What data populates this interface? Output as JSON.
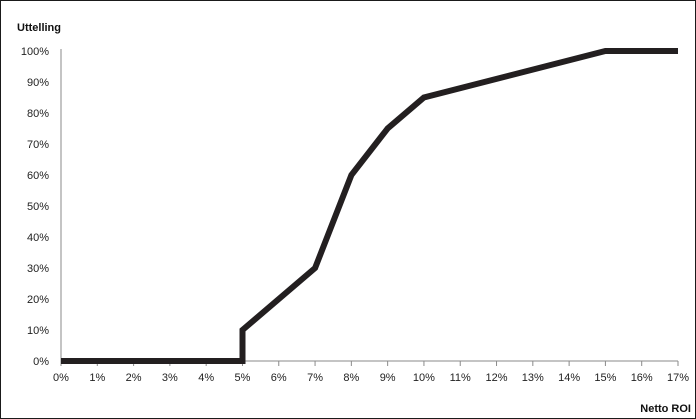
{
  "chart_data": {
    "type": "line",
    "title": "",
    "xlabel": "Netto ROI",
    "ylabel": "Uttelling",
    "x_ticks": [
      "0%",
      "1%",
      "2%",
      "3%",
      "4%",
      "5%",
      "6%",
      "7%",
      "8%",
      "9%",
      "10%",
      "11%",
      "12%",
      "13%",
      "14%",
      "15%",
      "16%",
      "17%"
    ],
    "y_ticks": [
      "0%",
      "10%",
      "20%",
      "30%",
      "40%",
      "50%",
      "60%",
      "70%",
      "80%",
      "90%",
      "100%"
    ],
    "xlim": [
      0,
      17
    ],
    "ylim": [
      0,
      100
    ],
    "grid": false,
    "legend": "none",
    "series": [
      {
        "color": "#231f20",
        "points": [
          [
            0,
            0
          ],
          [
            5,
            0
          ],
          [
            5,
            10
          ],
          [
            7,
            30
          ],
          [
            8,
            60
          ],
          [
            9,
            75
          ],
          [
            10,
            85
          ],
          [
            15,
            100
          ],
          [
            17,
            100
          ]
        ]
      }
    ]
  }
}
